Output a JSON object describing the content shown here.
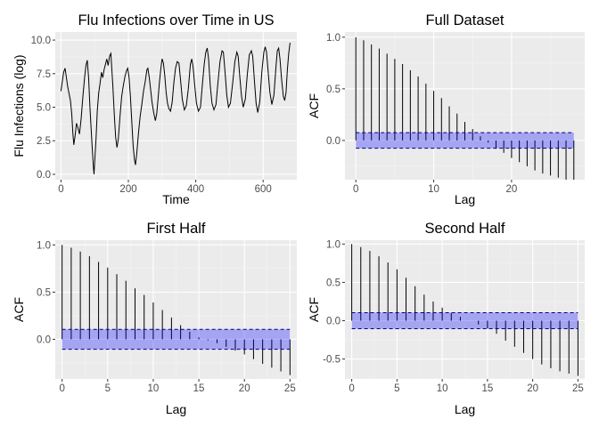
{
  "chart_data": [
    {
      "id": "ts",
      "type": "line",
      "title": "Flu Infections over Time in US",
      "xlabel": "Time",
      "ylabel": "Flu Infections (log)",
      "xlim": [
        -17,
        700
      ],
      "ylim": [
        -0.4,
        10.6
      ],
      "xticks": [
        0,
        200,
        400,
        600
      ],
      "yticks": [
        0.0,
        2.5,
        5.0,
        7.5,
        10.0
      ],
      "ytick_labels": [
        "0.0",
        "2.5",
        "5.0",
        "7.5",
        "10.0"
      ],
      "series": [
        {
          "name": "Flu Infections (log)",
          "points": [
            [
              0,
              6.2
            ],
            [
              5,
              7.1
            ],
            [
              8,
              7.6
            ],
            [
              12,
              7.9
            ],
            [
              16,
              7.2
            ],
            [
              20,
              6.5
            ],
            [
              24,
              6.0
            ],
            [
              28,
              5.5
            ],
            [
              32,
              4.5
            ],
            [
              35,
              3.1
            ],
            [
              38,
              2.2
            ],
            [
              42,
              2.9
            ],
            [
              46,
              3.8
            ],
            [
              50,
              3.5
            ],
            [
              55,
              3.0
            ],
            [
              60,
              4.2
            ],
            [
              65,
              5.8
            ],
            [
              70,
              7.2
            ],
            [
              74,
              8.1
            ],
            [
              78,
              8.5
            ],
            [
              82,
              7.2
            ],
            [
              86,
              5.0
            ],
            [
              90,
              3.2
            ],
            [
              93,
              1.8
            ],
            [
              96,
              0.6
            ],
            [
              98,
              0.0
            ],
            [
              100,
              0.9
            ],
            [
              104,
              2.6
            ],
            [
              108,
              4.8
            ],
            [
              112,
              6.1
            ],
            [
              116,
              6.8
            ],
            [
              120,
              7.6
            ],
            [
              124,
              7.2
            ],
            [
              128,
              7.8
            ],
            [
              132,
              8.2
            ],
            [
              136,
              8.6
            ],
            [
              140,
              8.1
            ],
            [
              144,
              8.8
            ],
            [
              148,
              9.0
            ],
            [
              150,
              8.2
            ],
            [
              154,
              6.6
            ],
            [
              158,
              4.6
            ],
            [
              162,
              2.8
            ],
            [
              166,
              2.0
            ],
            [
              170,
              2.6
            ],
            [
              175,
              4.3
            ],
            [
              180,
              5.8
            ],
            [
              185,
              6.6
            ],
            [
              190,
              7.3
            ],
            [
              194,
              7.7
            ],
            [
              198,
              7.9
            ],
            [
              202,
              7.2
            ],
            [
              206,
              5.8
            ],
            [
              210,
              4.0
            ],
            [
              214,
              2.2
            ],
            [
              218,
              1.1
            ],
            [
              221,
              0.7
            ],
            [
              225,
              1.6
            ],
            [
              230,
              3.1
            ],
            [
              235,
              4.3
            ],
            [
              240,
              5.2
            ],
            [
              245,
              6.2
            ],
            [
              250,
              6.9
            ],
            [
              255,
              7.8
            ],
            [
              258,
              7.9
            ],
            [
              262,
              7.2
            ],
            [
              266,
              6.3
            ],
            [
              270,
              5.4
            ],
            [
              275,
              4.6
            ],
            [
              280,
              4.0
            ],
            [
              284,
              4.5
            ],
            [
              288,
              5.6
            ],
            [
              292,
              6.8
            ],
            [
              296,
              7.8
            ],
            [
              300,
              8.6
            ],
            [
              304,
              8.3
            ],
            [
              308,
              7.4
            ],
            [
              312,
              6.1
            ],
            [
              316,
              5.3
            ],
            [
              320,
              4.9
            ],
            [
              325,
              4.7
            ],
            [
              330,
              5.4
            ],
            [
              335,
              6.8
            ],
            [
              340,
              7.9
            ],
            [
              345,
              8.4
            ],
            [
              350,
              8.3
            ],
            [
              355,
              7.0
            ],
            [
              360,
              5.6
            ],
            [
              366,
              4.8
            ],
            [
              372,
              5.1
            ],
            [
              378,
              6.4
            ],
            [
              384,
              8.2
            ],
            [
              388,
              8.6
            ],
            [
              392,
              8.0
            ],
            [
              397,
              6.6
            ],
            [
              402,
              5.3
            ],
            [
              408,
              4.7
            ],
            [
              414,
              5.0
            ],
            [
              420,
              6.8
            ],
            [
              425,
              8.2
            ],
            [
              430,
              9.1
            ],
            [
              434,
              9.4
            ],
            [
              438,
              8.6
            ],
            [
              443,
              6.6
            ],
            [
              448,
              5.3
            ],
            [
              454,
              4.8
            ],
            [
              460,
              5.2
            ],
            [
              466,
              6.9
            ],
            [
              472,
              8.4
            ],
            [
              478,
              9.2
            ],
            [
              482,
              9.1
            ],
            [
              487,
              7.6
            ],
            [
              492,
              5.9
            ],
            [
              497,
              5.0
            ],
            [
              503,
              5.3
            ],
            [
              510,
              6.9
            ],
            [
              516,
              8.4
            ],
            [
              522,
              9.1
            ],
            [
              526,
              8.8
            ],
            [
              531,
              7.2
            ],
            [
              536,
              5.8
            ],
            [
              541,
              5.0
            ],
            [
              547,
              5.6
            ],
            [
              553,
              7.4
            ],
            [
              559,
              8.9
            ],
            [
              565,
              9.2
            ],
            [
              569,
              8.8
            ],
            [
              574,
              7.0
            ],
            [
              579,
              5.3
            ],
            [
              584,
              4.6
            ],
            [
              590,
              5.4
            ],
            [
              596,
              7.6
            ],
            [
              602,
              9.1
            ],
            [
              606,
              9.5
            ],
            [
              610,
              9.1
            ],
            [
              615,
              7.6
            ],
            [
              620,
              6.1
            ],
            [
              626,
              5.2
            ],
            [
              632,
              5.9
            ],
            [
              638,
              8.0
            ],
            [
              642,
              9.2
            ],
            [
              646,
              9.4
            ],
            [
              650,
              8.6
            ],
            [
              655,
              7.0
            ],
            [
              660,
              5.8
            ],
            [
              664,
              5.5
            ],
            [
              668,
              6.1
            ],
            [
              672,
              7.8
            ],
            [
              676,
              9.0
            ],
            [
              680,
              9.8
            ]
          ]
        }
      ]
    },
    {
      "id": "acf_full",
      "type": "bar",
      "title": "Full Dataset",
      "xlabel": "Lag",
      "ylabel": "ACF",
      "xlim": [
        -1.4,
        29.4
      ],
      "ylim": [
        -0.38,
        1.05
      ],
      "xticks": [
        0,
        10,
        20
      ],
      "yticks": [
        0.0,
        0.5,
        1.0
      ],
      "ytick_labels": [
        "0.0",
        "0.5",
        "1.0"
      ],
      "ci": 0.075,
      "lags": [
        0,
        1,
        2,
        3,
        4,
        5,
        6,
        7,
        8,
        9,
        10,
        11,
        12,
        13,
        14,
        15,
        16,
        17,
        18,
        19,
        20,
        21,
        22,
        23,
        24,
        25,
        26,
        27,
        28
      ],
      "values": [
        1.0,
        0.97,
        0.93,
        0.89,
        0.84,
        0.79,
        0.74,
        0.68,
        0.62,
        0.55,
        0.48,
        0.41,
        0.33,
        0.26,
        0.18,
        0.11,
        0.04,
        -0.02,
        -0.08,
        -0.12,
        -0.17,
        -0.21,
        -0.25,
        -0.29,
        -0.32,
        -0.34,
        -0.36,
        -0.38,
        -0.38
      ]
    },
    {
      "id": "acf_first",
      "type": "bar",
      "title": "First Half",
      "xlabel": "Lag",
      "ylabel": "ACF",
      "xlim": [
        -0.75,
        25.75
      ],
      "ylim": [
        -0.42,
        1.05
      ],
      "xticks": [
        0,
        5,
        10,
        15,
        20,
        25
      ],
      "yticks": [
        0.0,
        0.5,
        1.0
      ],
      "ytick_labels": [
        "0.0",
        "0.5",
        "1.0"
      ],
      "ci": 0.105,
      "lags": [
        0,
        1,
        2,
        3,
        4,
        5,
        6,
        7,
        8,
        9,
        10,
        11,
        12,
        13,
        14,
        15,
        16,
        17,
        18,
        19,
        20,
        21,
        22,
        23,
        24,
        25
      ],
      "values": [
        1.0,
        0.97,
        0.93,
        0.88,
        0.82,
        0.76,
        0.69,
        0.62,
        0.54,
        0.47,
        0.39,
        0.31,
        0.23,
        0.15,
        0.08,
        0.02,
        -0.01,
        -0.04,
        -0.08,
        -0.12,
        -0.16,
        -0.21,
        -0.26,
        -0.3,
        -0.34,
        -0.38
      ]
    },
    {
      "id": "acf_second",
      "type": "bar",
      "title": "Second Half",
      "xlabel": "Lag",
      "ylabel": "ACF",
      "xlim": [
        -0.75,
        25.75
      ],
      "ylim": [
        -0.76,
        1.05
      ],
      "xticks": [
        0,
        5,
        10,
        15,
        20,
        25
      ],
      "yticks": [
        -0.5,
        0.0,
        0.5,
        1.0
      ],
      "ytick_labels": [
        "-0.5",
        "0.0",
        "0.5",
        "1.0"
      ],
      "ci": 0.105,
      "lags": [
        0,
        1,
        2,
        3,
        4,
        5,
        6,
        7,
        8,
        9,
        10,
        11,
        12,
        13,
        14,
        15,
        16,
        17,
        18,
        19,
        20,
        21,
        22,
        23,
        24,
        25
      ],
      "values": [
        1.0,
        0.96,
        0.91,
        0.84,
        0.76,
        0.67,
        0.56,
        0.45,
        0.34,
        0.25,
        0.17,
        0.1,
        0.05,
        0.0,
        -0.05,
        -0.1,
        -0.17,
        -0.26,
        -0.34,
        -0.42,
        -0.5,
        -0.57,
        -0.62,
        -0.66,
        -0.69,
        -0.72
      ]
    }
  ]
}
